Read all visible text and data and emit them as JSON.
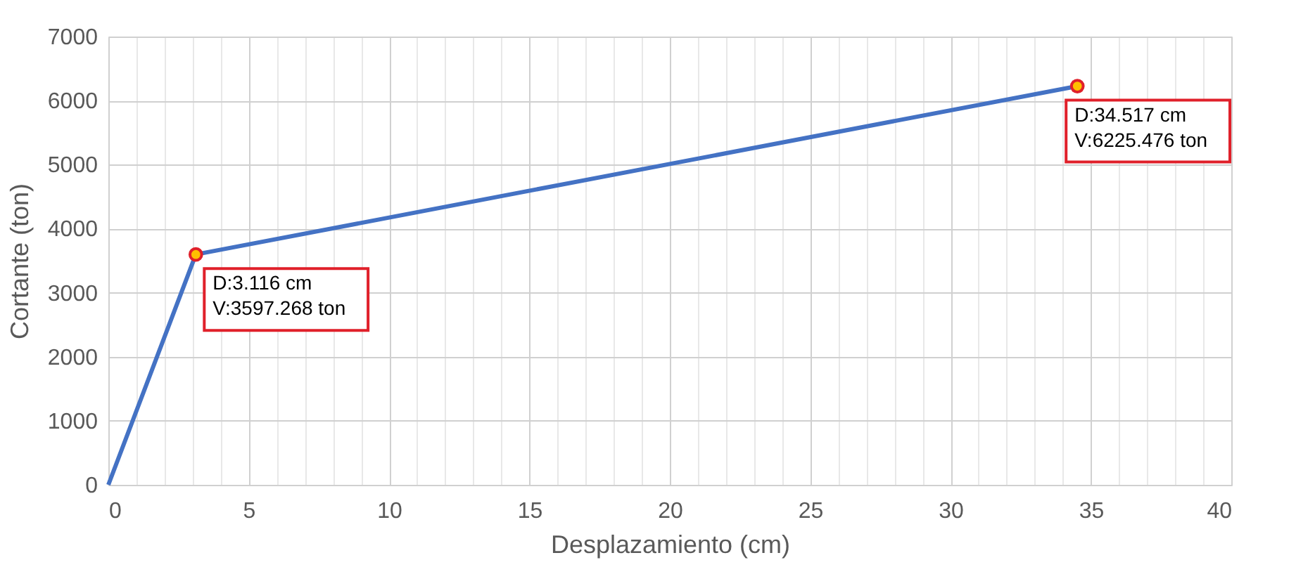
{
  "chart_data": {
    "type": "line",
    "xlabel": "Desplazamiento (cm)",
    "ylabel": "Cortante (ton)",
    "xlim": [
      0,
      40
    ],
    "ylim": [
      0,
      7000
    ],
    "xticks": [
      0,
      {
        "value": 1,
        "label": null
      },
      {
        "value": 2,
        "label": null
      },
      {
        "value": 3,
        "label": null
      },
      {
        "value": 4,
        "label": null
      },
      5,
      {
        "value": 6,
        "label": null
      },
      {
        "value": 7,
        "label": null
      },
      {
        "value": 8,
        "label": null
      },
      {
        "value": 9,
        "label": null
      },
      10,
      {
        "value": 11,
        "label": null
      },
      {
        "value": 12,
        "label": null
      },
      {
        "value": 13,
        "label": null
      },
      {
        "value": 14,
        "label": null
      },
      15,
      {
        "value": 16,
        "label": null
      },
      {
        "value": 17,
        "label": null
      },
      {
        "value": 18,
        "label": null
      },
      {
        "value": 19,
        "label": null
      },
      20,
      {
        "value": 21,
        "label": null
      },
      {
        "value": 22,
        "label": null
      },
      {
        "value": 23,
        "label": null
      },
      {
        "value": 24,
        "label": null
      },
      25,
      {
        "value": 26,
        "label": null
      },
      {
        "value": 27,
        "label": null
      },
      {
        "value": 28,
        "label": null
      },
      {
        "value": 29,
        "label": null
      },
      30,
      {
        "value": 31,
        "label": null
      },
      {
        "value": 32,
        "label": null
      },
      {
        "value": 33,
        "label": null
      },
      {
        "value": 34,
        "label": null
      },
      35,
      {
        "value": 36,
        "label": null
      },
      {
        "value": 37,
        "label": null
      },
      {
        "value": 38,
        "label": null
      },
      {
        "value": 39,
        "label": null
      },
      40
    ],
    "yticks": [
      0,
      1000,
      2000,
      3000,
      4000,
      5000,
      6000,
      7000
    ],
    "grid": true,
    "series": [
      {
        "color": "#4472c4",
        "x": [
          0,
          3.116,
          34.517
        ],
        "values": [
          0,
          3597.268,
          6225.476
        ],
        "marker": "none"
      },
      {
        "type": "scatter",
        "color": "#ffc000",
        "x": [
          3.116,
          34.517
        ],
        "values": [
          3597.268,
          6225.476
        ],
        "marker": "circle"
      }
    ],
    "annotations": [
      {
        "text": "D:3.116 cm\nV:3597.268 ton",
        "x": 3.116,
        "y": 3597.268
      },
      {
        "text": "D:34.517 cm\nV:6225.476 ton",
        "x": 34.517,
        "y": 6225.476
      }
    ]
  }
}
